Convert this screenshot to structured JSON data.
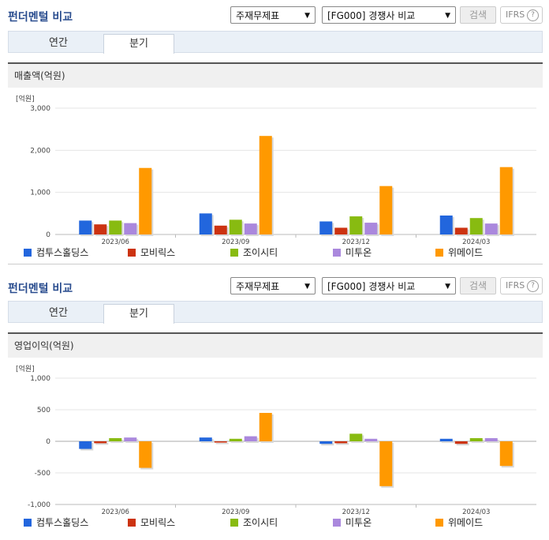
{
  "panels": [
    {
      "title": "펀더멘털 비교",
      "select_statement": "주재무제표",
      "select_compare": "[FG000] 경쟁사 비교",
      "search_label": "검색",
      "ifrs_label": "IFRS",
      "help_icon": "?",
      "tabs": [
        {
          "label": "연간",
          "active": false
        },
        {
          "label": "분기",
          "active": true
        }
      ],
      "section_title": "매출액(억원)",
      "unit_label": "[억원]",
      "legend": [
        "컴투스홀딩스",
        "모비릭스",
        "조이시티",
        "미투온",
        "위메이드"
      ]
    },
    {
      "title": "펀더멘털 비교",
      "select_statement": "주재무제표",
      "select_compare": "[FG000] 경쟁사 비교",
      "search_label": "검색",
      "ifrs_label": "IFRS",
      "help_icon": "?",
      "tabs": [
        {
          "label": "연간",
          "active": false
        },
        {
          "label": "분기",
          "active": true
        }
      ],
      "section_title": "영업이익(억원)",
      "unit_label": "[억원]",
      "legend": [
        "컴투스홀딩스",
        "모비릭스",
        "조이시티",
        "미투온",
        "위메이드"
      ]
    }
  ],
  "colors": {
    "series": [
      "#2266dd",
      "#cc3311",
      "#88bb11",
      "#aa88dd",
      "#ff9900"
    ],
    "title": "#2a4d8f",
    "tab_bar": "#eaf0f7"
  },
  "chart_data": [
    {
      "type": "bar",
      "title": "매출액(억원)",
      "ylabel": "[억원]",
      "categories": [
        "2023/06",
        "2023/09",
        "2023/12",
        "2024/03"
      ],
      "ylim": [
        0,
        3000
      ],
      "yticks": [
        0,
        1000,
        2000,
        3000
      ],
      "ytick_labels": [
        "0",
        "1,000",
        "2,000",
        "3,000"
      ],
      "grid": true,
      "legend_position": "bottom",
      "series": [
        {
          "name": "컴투스홀딩스",
          "values": [
            330,
            500,
            310,
            450
          ]
        },
        {
          "name": "모비릭스",
          "values": [
            240,
            210,
            160,
            160
          ]
        },
        {
          "name": "조이시티",
          "values": [
            330,
            350,
            430,
            390
          ]
        },
        {
          "name": "미투온",
          "values": [
            270,
            260,
            280,
            260
          ]
        },
        {
          "name": "위메이드",
          "values": [
            1580,
            2340,
            1150,
            1600
          ]
        }
      ]
    },
    {
      "type": "bar",
      "title": "영업이익(억원)",
      "ylabel": "[억원]",
      "categories": [
        "2023/06",
        "2023/09",
        "2023/12",
        "2024/03"
      ],
      "ylim": [
        -1000,
        1000
      ],
      "yticks": [
        -1000,
        -500,
        0,
        500,
        1000
      ],
      "ytick_labels": [
        "-1,000",
        "-500",
        "0",
        "500",
        "1,000"
      ],
      "grid": true,
      "legend_position": "bottom",
      "series": [
        {
          "name": "컴투스홀딩스",
          "values": [
            -120,
            60,
            -40,
            40
          ]
        },
        {
          "name": "모비릭스",
          "values": [
            -30,
            -20,
            -30,
            -40
          ]
        },
        {
          "name": "조이시티",
          "values": [
            50,
            40,
            120,
            50
          ]
        },
        {
          "name": "미투온",
          "values": [
            60,
            80,
            40,
            50
          ]
        },
        {
          "name": "위메이드",
          "values": [
            -420,
            450,
            -710,
            -390
          ]
        }
      ]
    }
  ]
}
